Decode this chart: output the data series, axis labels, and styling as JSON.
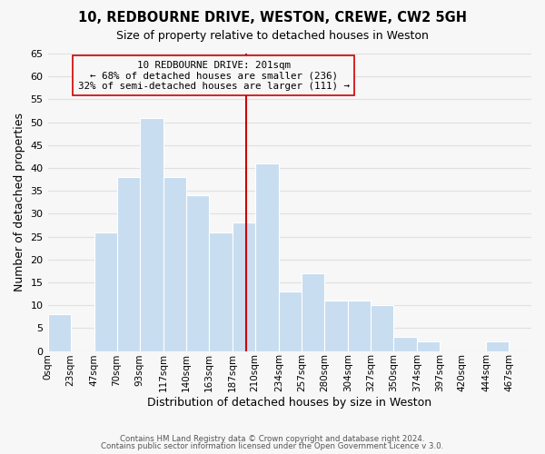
{
  "title": "10, REDBOURNE DRIVE, WESTON, CREWE, CW2 5GH",
  "subtitle": "Size of property relative to detached houses in Weston",
  "xlabel": "Distribution of detached houses by size in Weston",
  "ylabel": "Number of detached properties",
  "footer_lines": [
    "Contains HM Land Registry data © Crown copyright and database right 2024.",
    "Contains public sector information licensed under the Open Government Licence v 3.0."
  ],
  "bar_left_edges": [
    0,
    23,
    47,
    70,
    93,
    117,
    140,
    163,
    187,
    210,
    234,
    257,
    280,
    304,
    327,
    350,
    374,
    397,
    420,
    444
  ],
  "bar_heights": [
    8,
    0,
    26,
    38,
    51,
    38,
    34,
    26,
    28,
    41,
    13,
    17,
    11,
    11,
    10,
    3,
    2,
    0,
    0,
    2
  ],
  "bar_widths": [
    23,
    24,
    23,
    23,
    24,
    23,
    23,
    24,
    23,
    24,
    23,
    23,
    24,
    23,
    23,
    24,
    23,
    23,
    24,
    23
  ],
  "bar_color": "#c9ddf0",
  "bar_edge_color": "#ffffff",
  "property_line_x": 201,
  "property_line_color": "#cc0000",
  "annotation_line1": "10 REDBOURNE DRIVE: 201sqm",
  "annotation_line2": "← 68% of detached houses are smaller (236)",
  "annotation_line3": "32% of semi-detached houses are larger (111) →",
  "x_tick_positions": [
    0,
    23,
    47,
    70,
    93,
    117,
    140,
    163,
    187,
    210,
    234,
    257,
    280,
    304,
    327,
    350,
    374,
    397,
    420,
    444,
    467
  ],
  "x_tick_labels": [
    "0sqm",
    "23sqm",
    "47sqm",
    "70sqm",
    "93sqm",
    "117sqm",
    "140sqm",
    "163sqm",
    "187sqm",
    "210sqm",
    "234sqm",
    "257sqm",
    "280sqm",
    "304sqm",
    "327sqm",
    "350sqm",
    "374sqm",
    "397sqm",
    "420sqm",
    "444sqm",
    "467sqm"
  ],
  "xlim": [
    0,
    490
  ],
  "ylim": [
    0,
    65
  ],
  "yticks": [
    0,
    5,
    10,
    15,
    20,
    25,
    30,
    35,
    40,
    45,
    50,
    55,
    60,
    65
  ],
  "grid_color": "#e0e0e0",
  "background_color": "#f7f7f7"
}
